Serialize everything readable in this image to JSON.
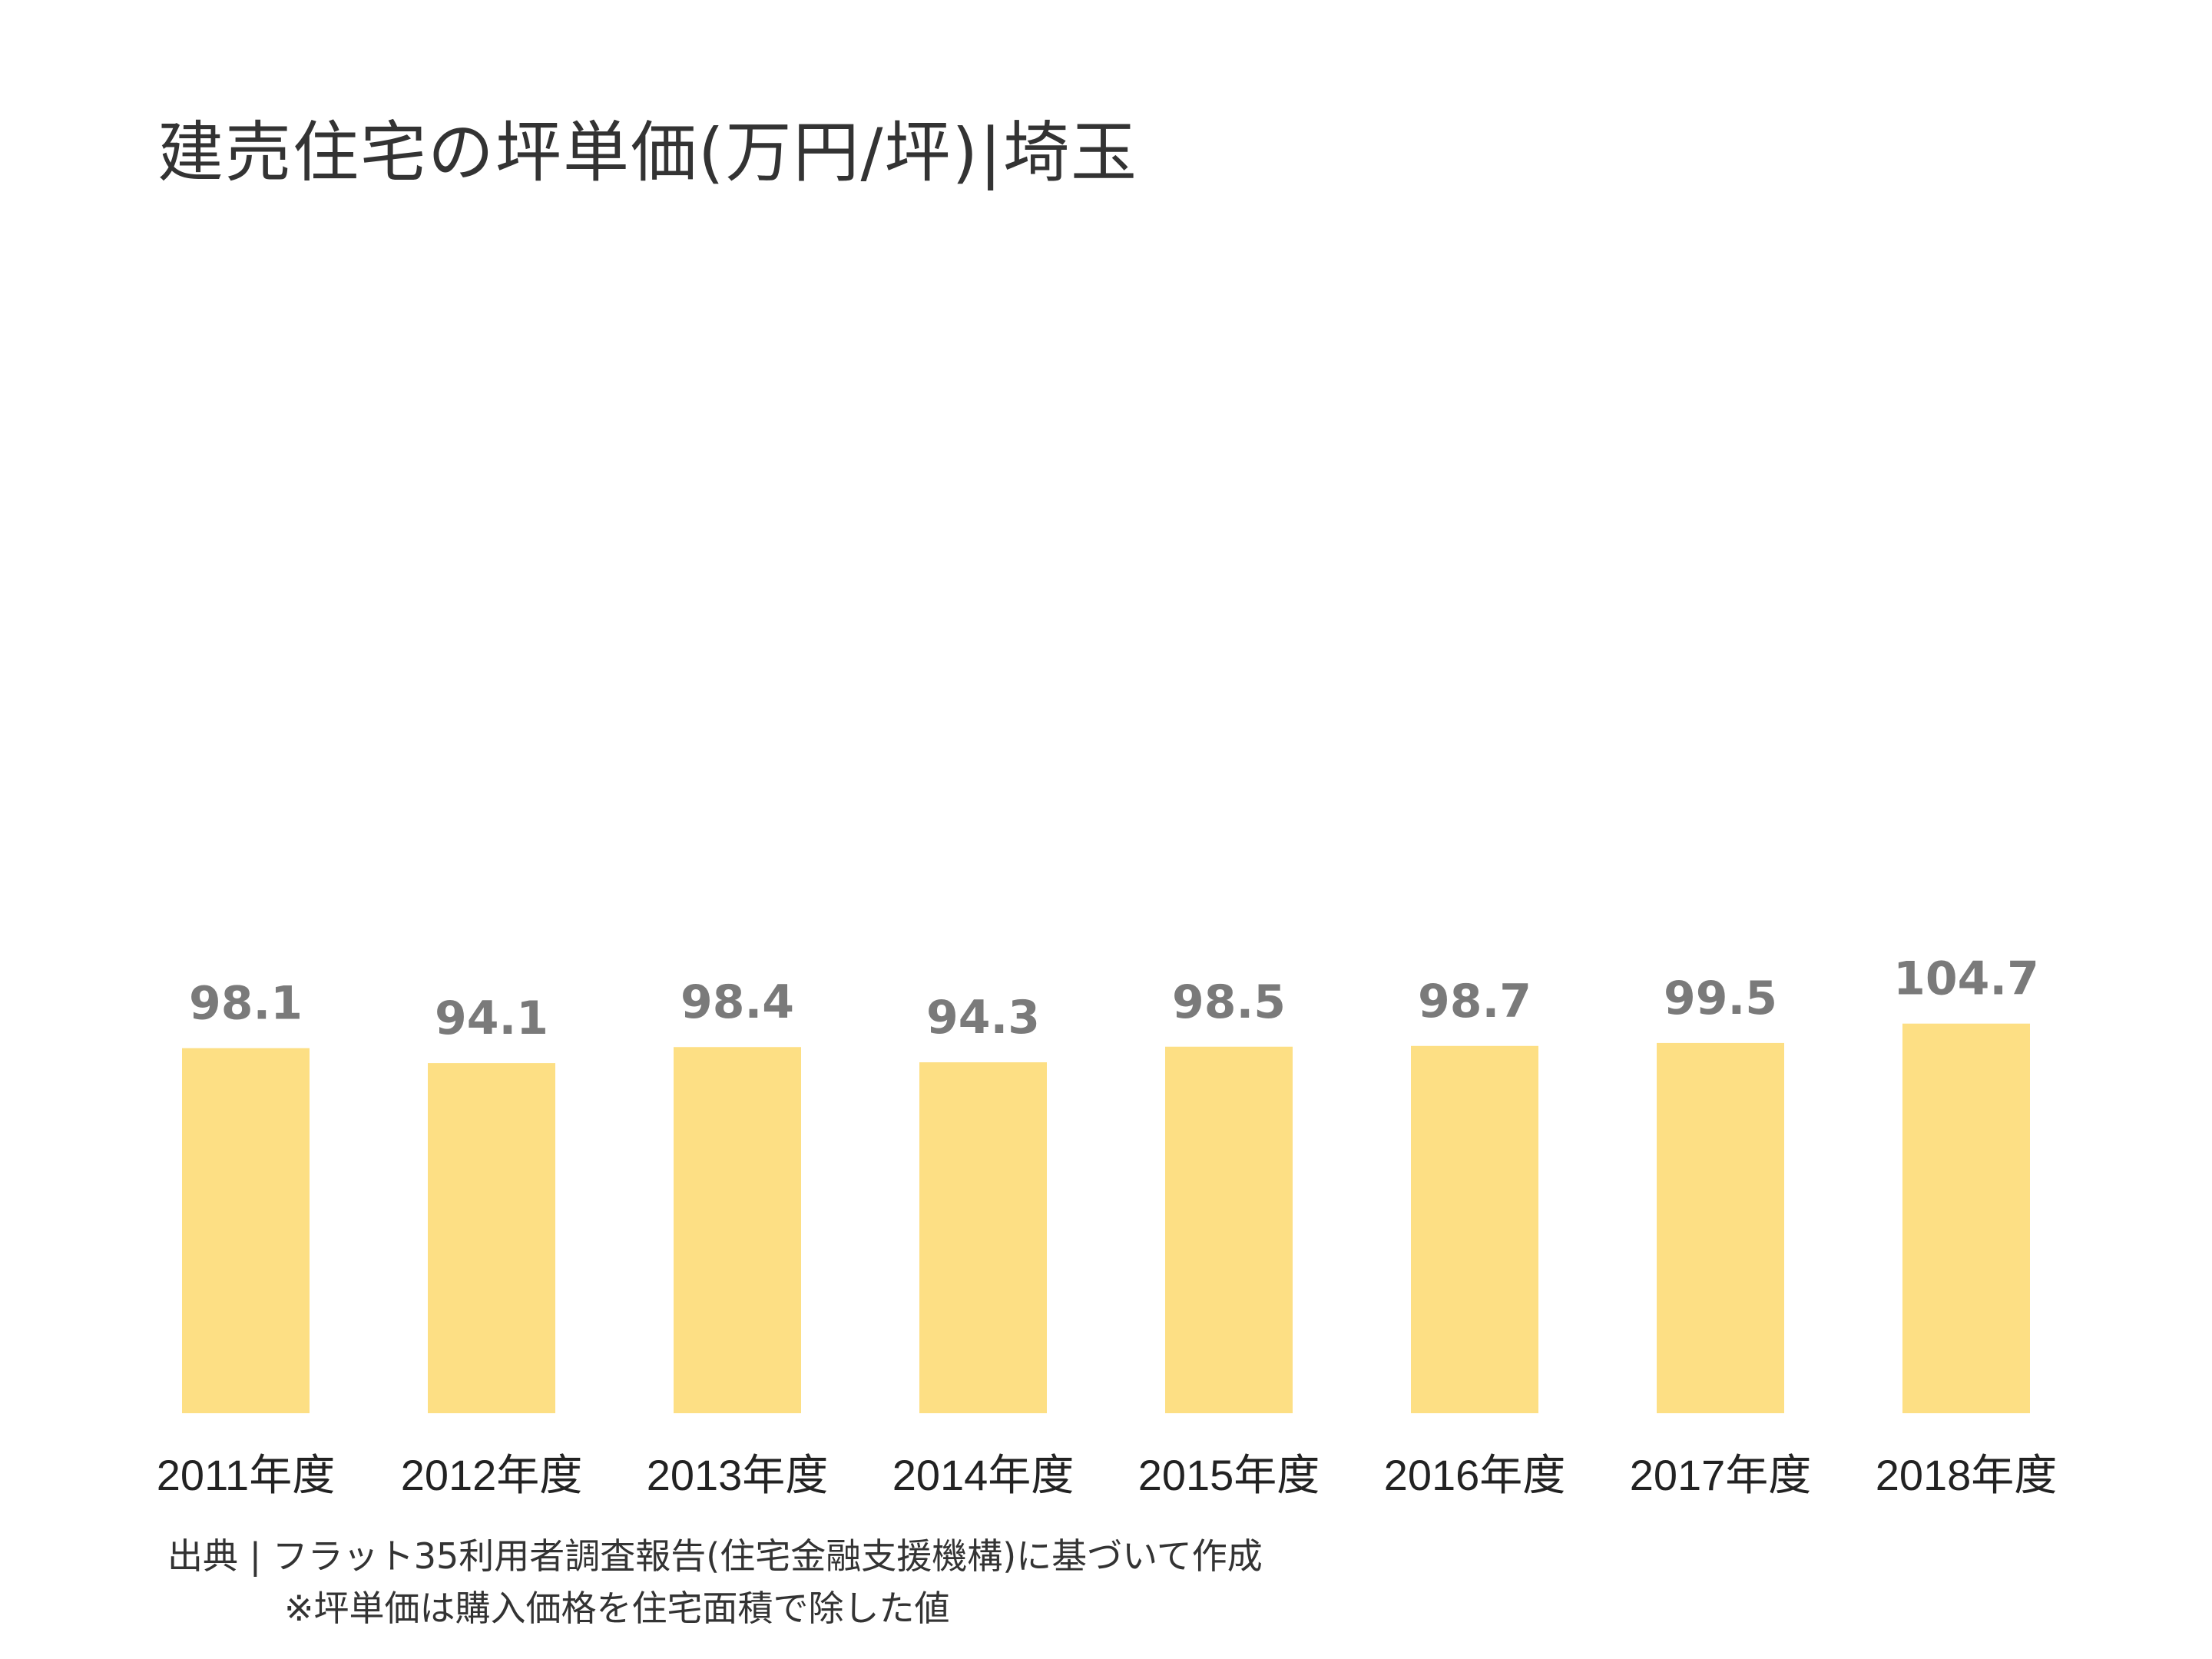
{
  "chart_data": {
    "type": "bar",
    "title": "建売住宅の坪単価(万円/坪)|埼玉",
    "categories": [
      "2011年度",
      "2012年度",
      "2013年度",
      "2014年度",
      "2015年度",
      "2016年度",
      "2017年度",
      "2018年度"
    ],
    "values": [
      98.1,
      94.1,
      98.4,
      94.3,
      98.5,
      98.7,
      99.5,
      104.7
    ],
    "value_labels": [
      "98.1",
      "94.1",
      "98.4",
      "94.3",
      "98.5",
      "98.7",
      "99.5",
      "104.7"
    ],
    "xlabel": "",
    "ylabel": "",
    "ylim": [
      0,
      355
    ],
    "grid": false,
    "legend": "none",
    "bar_color": "#FDDF84",
    "value_label_color": "#7A7A7A"
  },
  "notes": {
    "source": "出典 | フラット35利用者調査報告(住宅金融支援機構)に基づいて作成",
    "method": "※坪単価は購入価格を住宅面積で除した値"
  }
}
